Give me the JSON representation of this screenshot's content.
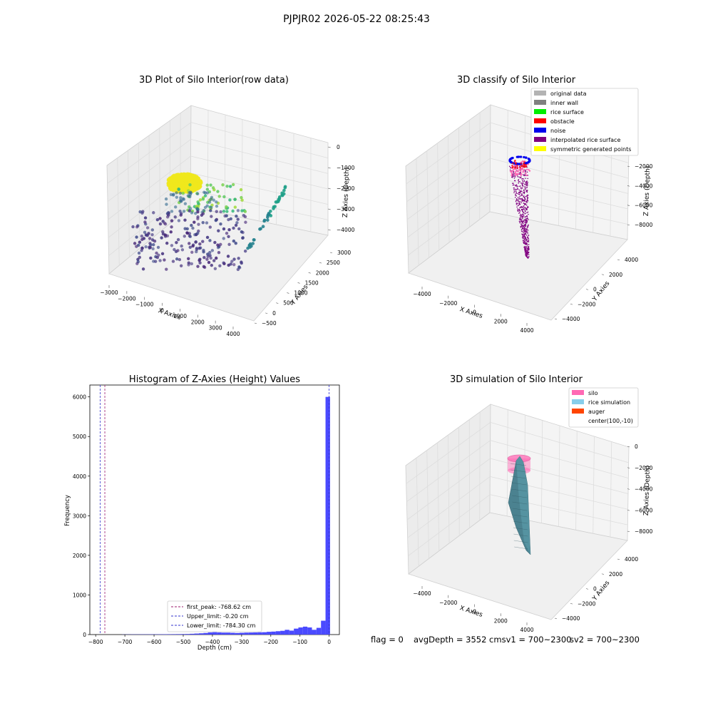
{
  "suptitle": "PJPJR02 2026-05-22 08:25:43",
  "status_line": {
    "flag": "flag = 0",
    "avg": "avgDepth = 3552 cmsv1 = 700~2300",
    "sv2": "sv2 = 700~2300"
  },
  "colors": {
    "grey_point": "#b3b3b3",
    "inner_wall": "#808080",
    "rice_surface": "#00ee00",
    "obstacle": "#ff0000",
    "noise": "#0000ee",
    "interpolated": "#800080",
    "symmetric": "#ffff00",
    "silo": "#ff69b4",
    "rice_sim": "#87ceeb",
    "auger": "#ff4500",
    "hist_bar": "#4a4aff",
    "pane": "#f2f2f2",
    "grid": "#dddddd"
  },
  "chart_data": [
    {
      "id": "raw",
      "type": "scatter",
      "title": "3D Plot of Silo Interior(row data)",
      "xlabel": "X Axies",
      "ylabel": "Y Axies",
      "zlabel": "Z Axies (Depth)",
      "x_ticks": [
        "−3000",
        "−2000",
        "−1000",
        "0",
        "1000",
        "2000",
        "3000",
        "4000"
      ],
      "y_ticks": [
        "−500",
        "0",
        "500",
        "1000",
        "1500",
        "2000",
        "2500",
        "3000"
      ],
      "z_ticks": [
        "0",
        "−1000",
        "−2000",
        "−3000",
        "−4000"
      ],
      "xlim": [
        -3300,
        4300
      ],
      "ylim": [
        -600,
        3400
      ],
      "zlim": [
        -4600,
        200
      ],
      "colormap": "viridis (by depth)",
      "clusters": [
        {
          "name": "top cluster (yellow)",
          "x": [
            -2300,
            -800
          ],
          "y": [
            -200,
            600
          ],
          "z": [
            -2600,
            -1900
          ],
          "color": "#f0e81c"
        },
        {
          "name": "mid points (green)",
          "x": [
            -1000,
            1500
          ],
          "y": [
            0,
            1200
          ],
          "z": [
            -3200,
            -2200
          ],
          "color": "#7ad151"
        },
        {
          "name": "lower points (purple)",
          "x": [
            -2800,
            2800
          ],
          "y": [
            -200,
            2200
          ],
          "z": [
            -4500,
            -3300
          ],
          "color": "#482878"
        },
        {
          "name": "right streak (teal)",
          "x": [
            2500,
            4100
          ],
          "y": [
            200,
            2800
          ],
          "z": [
            -4200,
            -1800
          ],
          "color": "#26828e"
        }
      ]
    },
    {
      "id": "classify",
      "type": "scatter",
      "title": "3D classify of Silo Interior",
      "xlabel": "X Axies",
      "ylabel": "Y Axies",
      "zlabel": "Z Axies (Depth)",
      "x_ticks": [
        "−4000",
        "−2000",
        "0",
        "2000",
        "4000"
      ],
      "y_ticks": [
        "−4000",
        "−2000",
        "0",
        "2000",
        "4000"
      ],
      "z_ticks": [
        "−2000",
        "−4000",
        "−6000",
        "−8000"
      ],
      "xlim": [
        -4700,
        4700
      ],
      "ylim": [
        -4700,
        4700
      ],
      "zlim": [
        -9200,
        0
      ],
      "legend_loc": "top-right",
      "legend": [
        {
          "label": "original data",
          "color_key": "grey_point"
        },
        {
          "label": "inner wall",
          "color_key": "inner_wall"
        },
        {
          "label": "rice surface",
          "color_key": "rice_surface"
        },
        {
          "label": "obstacle",
          "color_key": "obstacle"
        },
        {
          "label": "noise",
          "color_key": "noise"
        },
        {
          "label": "interpolated rice surface",
          "color_key": "interpolated"
        },
        {
          "label": "symmetric generated points",
          "color_key": "symmetric"
        }
      ]
    },
    {
      "id": "hist",
      "type": "bar",
      "title": "Histogram of Z-Axies (Height) Values",
      "xlabel": "Depth (cm)",
      "ylabel": "Frequency",
      "xlim": [
        -820,
        35
      ],
      "ylim": [
        0,
        6300
      ],
      "x_ticks": [
        -800,
        -700,
        -600,
        -500,
        -400,
        -300,
        -200,
        -100,
        0
      ],
      "x_tick_labels": [
        "−800",
        "−700",
        "−600",
        "−500",
        "−400",
        "−300",
        "−200",
        "−100",
        "0"
      ],
      "y_ticks": [
        0,
        1000,
        2000,
        3000,
        4000,
        5000,
        6000
      ],
      "y_tick_labels": [
        "0",
        "1000",
        "2000",
        "3000",
        "4000",
        "5000",
        "6000"
      ],
      "bin_start": -710,
      "bin_width": 15.5,
      "values": [
        3,
        4,
        5,
        5,
        6,
        6,
        7,
        7,
        8,
        9,
        10,
        11,
        12,
        13,
        15,
        20,
        26,
        32,
        40,
        55,
        60,
        55,
        50,
        50,
        45,
        40,
        45,
        50,
        52,
        55,
        58,
        60,
        70,
        75,
        85,
        95,
        120,
        100,
        150,
        180,
        200,
        180,
        120,
        170,
        350,
        6000
      ],
      "lines": [
        {
          "label": "first_peak: -768.62 cm",
          "x": -768.62,
          "color": "#9b1b6e"
        },
        {
          "label": "Upper_limit: -0.20 cm",
          "x": -0.2,
          "color": "#3333cc"
        },
        {
          "label": "Lower_limit: -784.30 cm",
          "x": -784.3,
          "color": "#3333cc"
        }
      ],
      "legend_loc": "lower-center"
    },
    {
      "id": "sim",
      "type": "surface",
      "title": "3D simulation of Silo Interior",
      "xlabel": "X Axies",
      "ylabel": "Y Axies",
      "zlabel": "Z Axies (Depth)",
      "x_ticks": [
        "−4000",
        "−2000",
        "0",
        "2000",
        "4000"
      ],
      "y_ticks": [
        "−4000",
        "−2000",
        "0",
        "2000",
        "4000"
      ],
      "z_ticks": [
        "0",
        "−2000",
        "−4000",
        "−6000",
        "−8000"
      ],
      "xlim": [
        -4700,
        4700
      ],
      "ylim": [
        -4700,
        4700
      ],
      "zlim": [
        -9200,
        0
      ],
      "legend_loc": "top-right",
      "legend": [
        {
          "label": "silo",
          "color_key": "silo"
        },
        {
          "label": "rice simulation",
          "color_key": "rice_sim"
        },
        {
          "label": "auger",
          "color_key": "auger"
        },
        {
          "label": "center(100,-10)",
          "color_key": ""
        }
      ]
    }
  ]
}
